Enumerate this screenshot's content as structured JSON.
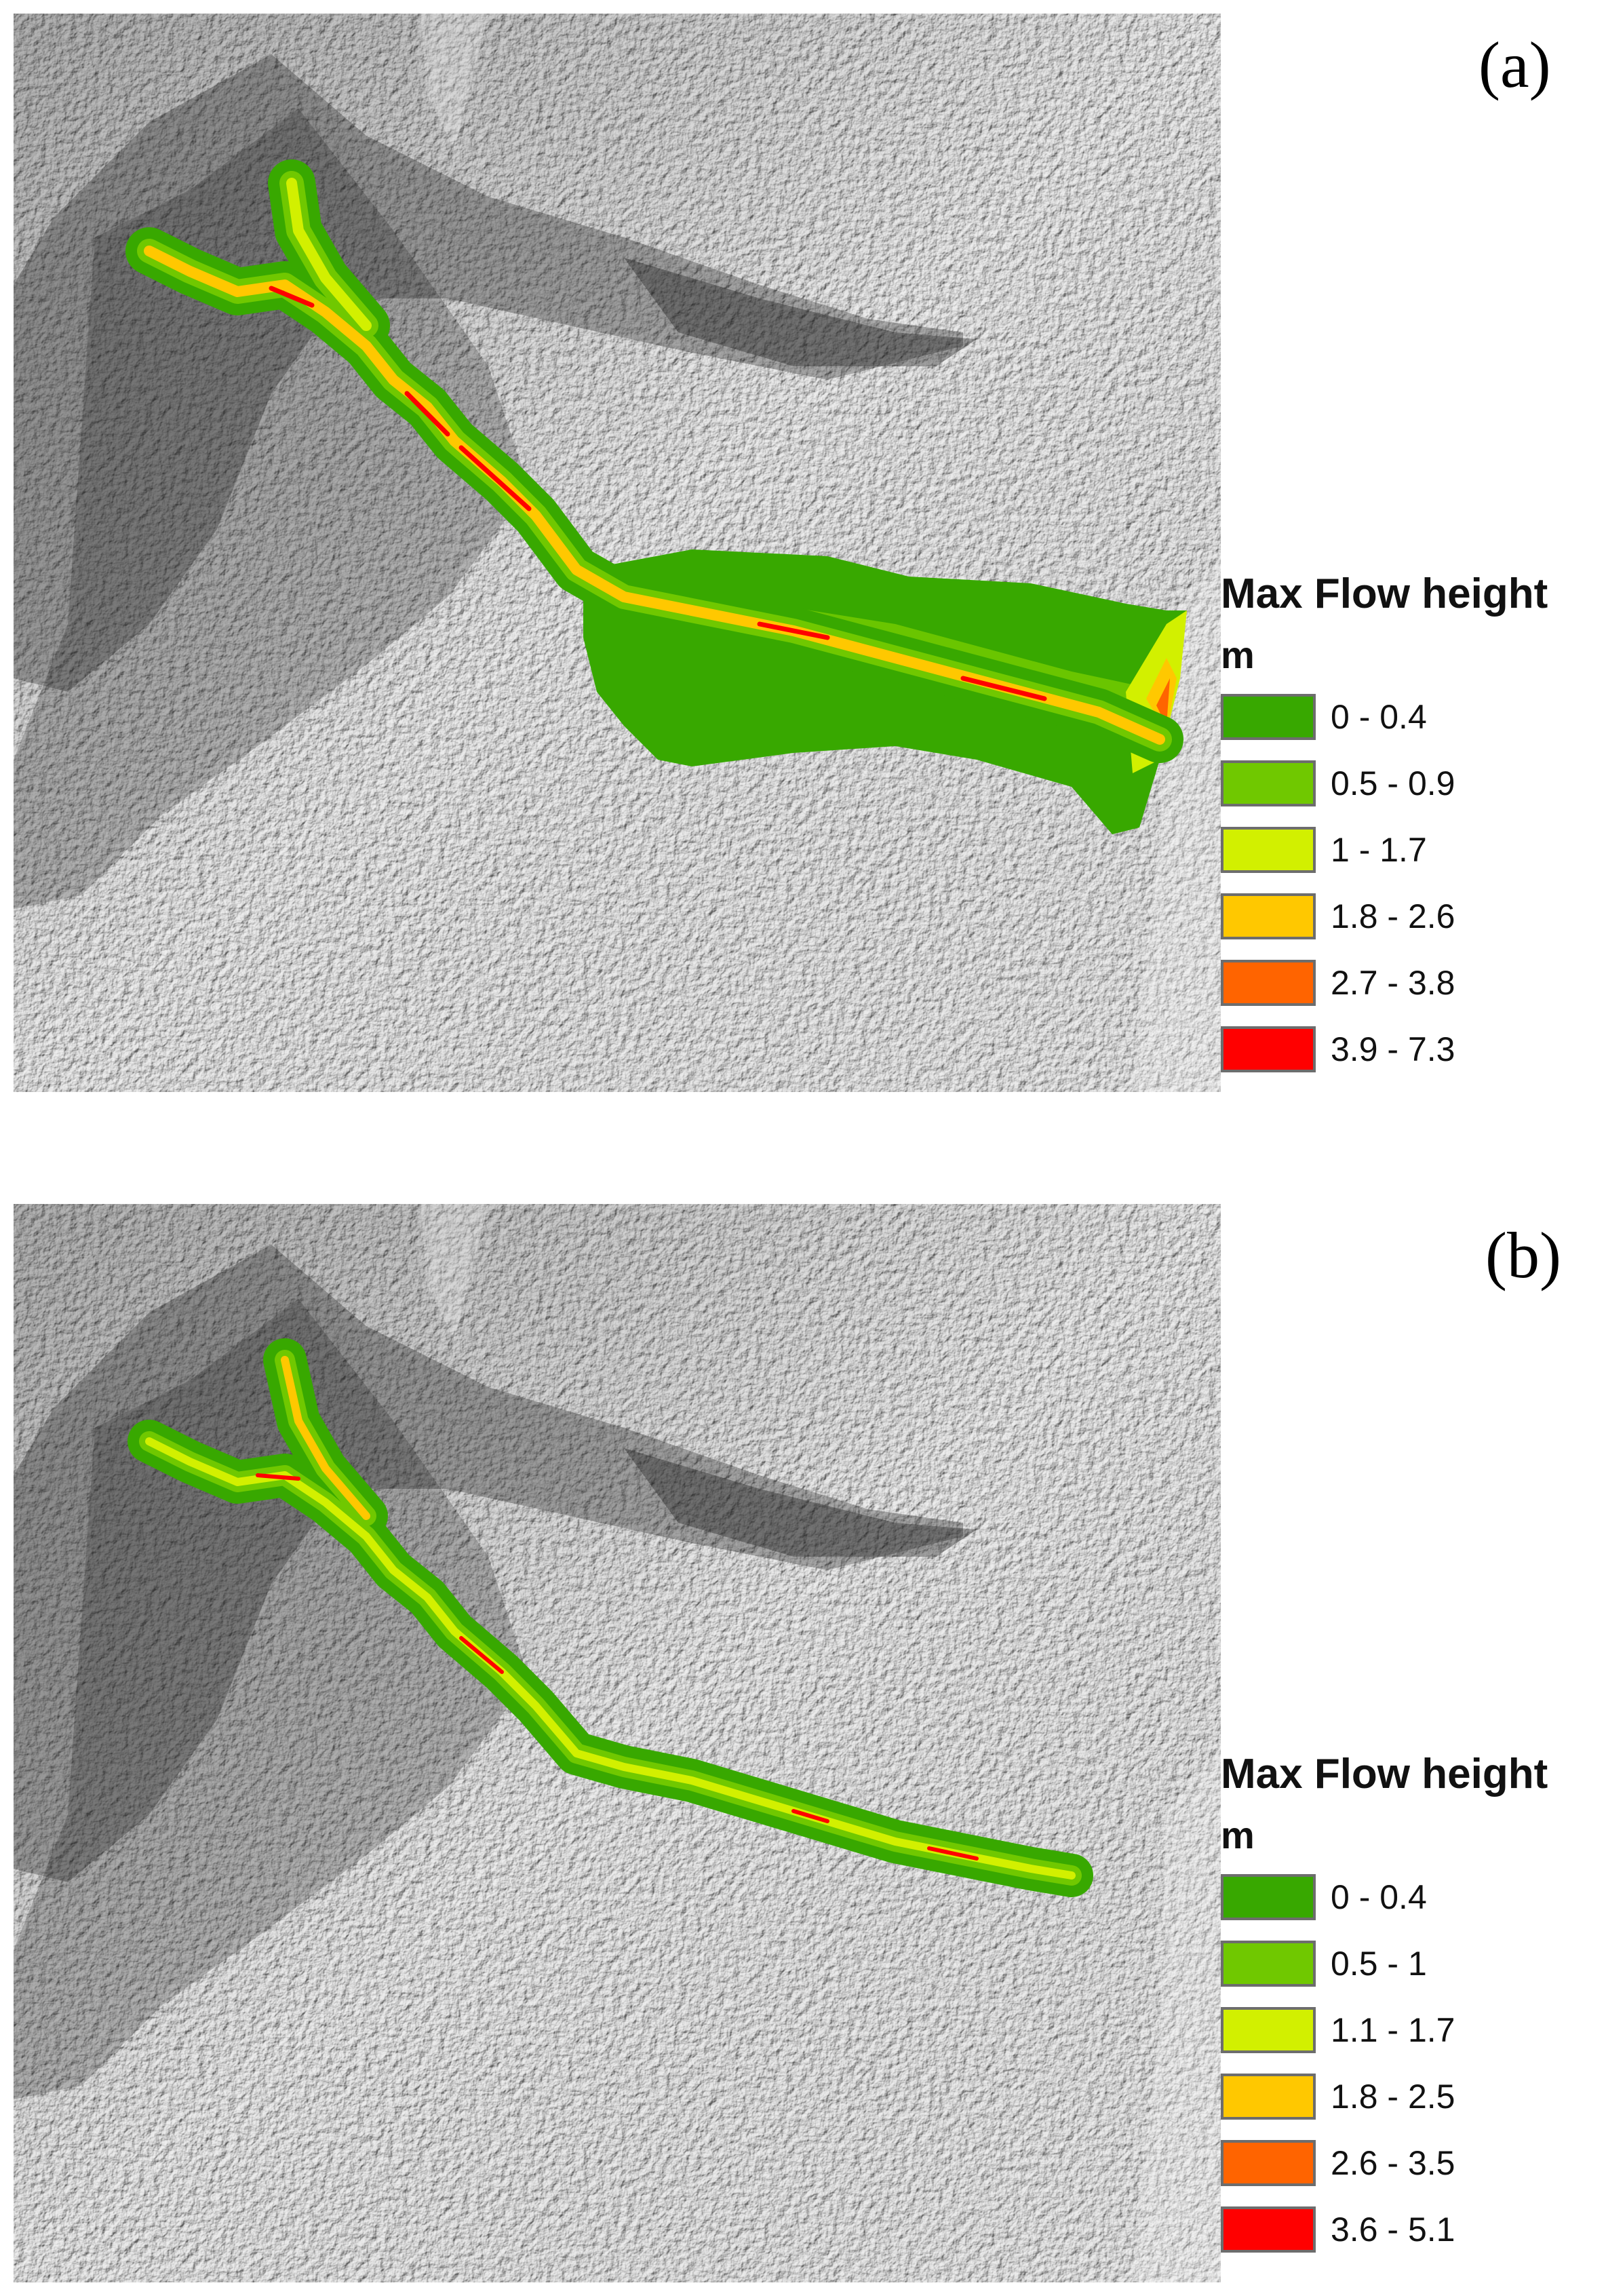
{
  "panels": [
    {
      "label": "(a)",
      "legend": {
        "title": "Max Flow height",
        "unit": "m",
        "classes": [
          {
            "label": "0 - 0.4",
            "color": "#38a800"
          },
          {
            "label": "0.5 - 0.9",
            "color": "#70c800"
          },
          {
            "label": "1 - 1.7",
            "color": "#d2f000"
          },
          {
            "label": "1.8 - 2.6",
            "color": "#ffc800"
          },
          {
            "label": "2.7 - 3.8",
            "color": "#ff6400"
          },
          {
            "label": "3.9 - 7.3",
            "color": "#ff0000"
          }
        ]
      }
    },
    {
      "label": "(b)",
      "legend": {
        "title": "Max Flow height",
        "unit": "m",
        "classes": [
          {
            "label": "0 - 0.4",
            "color": "#38a800"
          },
          {
            "label": "0.5 - 1",
            "color": "#70c800"
          },
          {
            "label": "1.1 - 1.7",
            "color": "#d2f000"
          },
          {
            "label": "1.8 - 2.5",
            "color": "#ffc800"
          },
          {
            "label": "2.6 - 3.5",
            "color": "#ff6400"
          },
          {
            "label": "3.6 - 5.1",
            "color": "#ff0000"
          }
        ]
      }
    }
  ]
}
